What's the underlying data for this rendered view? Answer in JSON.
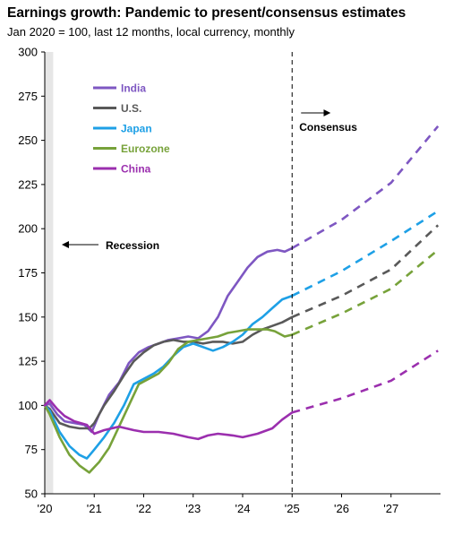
{
  "chart_data": {
    "type": "line",
    "title": "Earnings growth: Pandemic to present/consensus estimates",
    "subtitle": "Jan 2020 = 100, last 12 months, local currency, monthly",
    "xlabel": "",
    "ylabel": "",
    "ylim": [
      50,
      300
    ],
    "yticks": [
      50,
      75,
      100,
      125,
      150,
      175,
      200,
      225,
      250,
      275,
      300
    ],
    "xlim": [
      2020.0,
      2028.0
    ],
    "xticks": [
      {
        "value": 2020,
        "label": "'20"
      },
      {
        "value": 2021,
        "label": "'21"
      },
      {
        "value": 2022,
        "label": "'22"
      },
      {
        "value": 2023,
        "label": "'23"
      },
      {
        "value": 2024,
        "label": "'24"
      },
      {
        "value": 2025,
        "label": "'25"
      },
      {
        "value": 2026,
        "label": "'26"
      },
      {
        "value": 2027,
        "label": "'27"
      }
    ],
    "grid": false,
    "legend_position": "top-left",
    "recession": {
      "start": 2020.0,
      "end": 2020.17,
      "label": "Recession"
    },
    "consensus_divider": {
      "x": 2025.0,
      "label": "Consensus"
    },
    "series": [
      {
        "name": "India",
        "color": "#7e57c2",
        "actual": [
          [
            2020.0,
            100
          ],
          [
            2020.1,
            101
          ],
          [
            2020.25,
            95
          ],
          [
            2020.4,
            91
          ],
          [
            2020.6,
            90
          ],
          [
            2020.8,
            89
          ],
          [
            2020.95,
            85
          ],
          [
            2021.1,
            95
          ],
          [
            2021.3,
            106
          ],
          [
            2021.5,
            113
          ],
          [
            2021.7,
            124
          ],
          [
            2021.9,
            130
          ],
          [
            2022.1,
            133
          ],
          [
            2022.3,
            135
          ],
          [
            2022.5,
            137
          ],
          [
            2022.7,
            138
          ],
          [
            2022.9,
            139
          ],
          [
            2023.1,
            138
          ],
          [
            2023.3,
            142
          ],
          [
            2023.5,
            150
          ],
          [
            2023.7,
            162
          ],
          [
            2023.9,
            170
          ],
          [
            2024.1,
            178
          ],
          [
            2024.3,
            184
          ],
          [
            2024.5,
            187
          ],
          [
            2024.7,
            188
          ],
          [
            2024.85,
            187
          ],
          [
            2025.0,
            189
          ]
        ],
        "forecast": [
          [
            2025.0,
            189
          ],
          [
            2026.0,
            205
          ],
          [
            2027.0,
            226
          ],
          [
            2027.95,
            258
          ]
        ]
      },
      {
        "name": "U.S.",
        "color": "#595959",
        "actual": [
          [
            2020.0,
            100
          ],
          [
            2020.1,
            98
          ],
          [
            2020.3,
            90
          ],
          [
            2020.5,
            88
          ],
          [
            2020.7,
            87
          ],
          [
            2020.9,
            87
          ],
          [
            2021.0,
            90
          ],
          [
            2021.2,
            100
          ],
          [
            2021.4,
            108
          ],
          [
            2021.6,
            117
          ],
          [
            2021.8,
            125
          ],
          [
            2022.0,
            130
          ],
          [
            2022.2,
            134
          ],
          [
            2022.4,
            136
          ],
          [
            2022.6,
            137
          ],
          [
            2022.8,
            136
          ],
          [
            2023.0,
            136
          ],
          [
            2023.2,
            135
          ],
          [
            2023.4,
            136
          ],
          [
            2023.6,
            136
          ],
          [
            2023.8,
            135
          ],
          [
            2024.0,
            136
          ],
          [
            2024.2,
            140
          ],
          [
            2024.4,
            143
          ],
          [
            2024.6,
            145
          ],
          [
            2024.8,
            147
          ],
          [
            2025.0,
            150
          ]
        ],
        "forecast": [
          [
            2025.0,
            150
          ],
          [
            2026.0,
            162
          ],
          [
            2027.0,
            177
          ],
          [
            2027.95,
            202
          ]
        ]
      },
      {
        "name": "Japan",
        "color": "#1ea0e6",
        "actual": [
          [
            2020.0,
            100
          ],
          [
            2020.1,
            97
          ],
          [
            2020.3,
            85
          ],
          [
            2020.5,
            77
          ],
          [
            2020.7,
            72
          ],
          [
            2020.85,
            70
          ],
          [
            2021.0,
            75
          ],
          [
            2021.2,
            82
          ],
          [
            2021.4,
            90
          ],
          [
            2021.6,
            100
          ],
          [
            2021.8,
            112
          ],
          [
            2022.0,
            115
          ],
          [
            2022.2,
            118
          ],
          [
            2022.4,
            122
          ],
          [
            2022.6,
            128
          ],
          [
            2022.8,
            133
          ],
          [
            2023.0,
            135
          ],
          [
            2023.2,
            133
          ],
          [
            2023.4,
            131
          ],
          [
            2023.6,
            133
          ],
          [
            2023.8,
            136
          ],
          [
            2024.0,
            140
          ],
          [
            2024.2,
            146
          ],
          [
            2024.4,
            150
          ],
          [
            2024.6,
            155
          ],
          [
            2024.8,
            160
          ],
          [
            2025.0,
            162
          ]
        ],
        "forecast": [
          [
            2025.0,
            162
          ],
          [
            2026.0,
            176
          ],
          [
            2027.0,
            193
          ],
          [
            2027.95,
            210
          ]
        ]
      },
      {
        "name": "Eurozone",
        "color": "#77a23a",
        "actual": [
          [
            2020.0,
            100
          ],
          [
            2020.1,
            95
          ],
          [
            2020.3,
            82
          ],
          [
            2020.5,
            72
          ],
          [
            2020.7,
            66
          ],
          [
            2020.9,
            62
          ],
          [
            2021.1,
            68
          ],
          [
            2021.3,
            76
          ],
          [
            2021.5,
            88
          ],
          [
            2021.7,
            100
          ],
          [
            2021.9,
            112
          ],
          [
            2022.1,
            115
          ],
          [
            2022.3,
            118
          ],
          [
            2022.5,
            124
          ],
          [
            2022.7,
            132
          ],
          [
            2022.9,
            136
          ],
          [
            2023.1,
            137
          ],
          [
            2023.3,
            138
          ],
          [
            2023.5,
            139
          ],
          [
            2023.7,
            141
          ],
          [
            2023.9,
            142
          ],
          [
            2024.1,
            143
          ],
          [
            2024.3,
            143
          ],
          [
            2024.5,
            143
          ],
          [
            2024.65,
            142
          ],
          [
            2024.85,
            139
          ],
          [
            2025.0,
            140
          ]
        ],
        "forecast": [
          [
            2025.0,
            140
          ],
          [
            2026.0,
            152
          ],
          [
            2027.0,
            166
          ],
          [
            2027.95,
            188
          ]
        ]
      },
      {
        "name": "China",
        "color": "#9b2fae",
        "actual": [
          [
            2020.0,
            100
          ],
          [
            2020.1,
            103
          ],
          [
            2020.25,
            98
          ],
          [
            2020.4,
            94
          ],
          [
            2020.6,
            91
          ],
          [
            2020.85,
            89
          ],
          [
            2021.0,
            84
          ],
          [
            2021.2,
            86
          ],
          [
            2021.5,
            88
          ],
          [
            2021.8,
            86
          ],
          [
            2022.0,
            85
          ],
          [
            2022.3,
            85
          ],
          [
            2022.6,
            84
          ],
          [
            2022.9,
            82
          ],
          [
            2023.1,
            81
          ],
          [
            2023.3,
            83
          ],
          [
            2023.5,
            84
          ],
          [
            2023.8,
            83
          ],
          [
            2024.0,
            82
          ],
          [
            2024.3,
            84
          ],
          [
            2024.6,
            87
          ],
          [
            2024.8,
            92
          ],
          [
            2025.0,
            96
          ]
        ],
        "forecast": [
          [
            2025.0,
            96
          ],
          [
            2026.0,
            104
          ],
          [
            2027.0,
            114
          ],
          [
            2027.95,
            131
          ]
        ]
      }
    ]
  }
}
